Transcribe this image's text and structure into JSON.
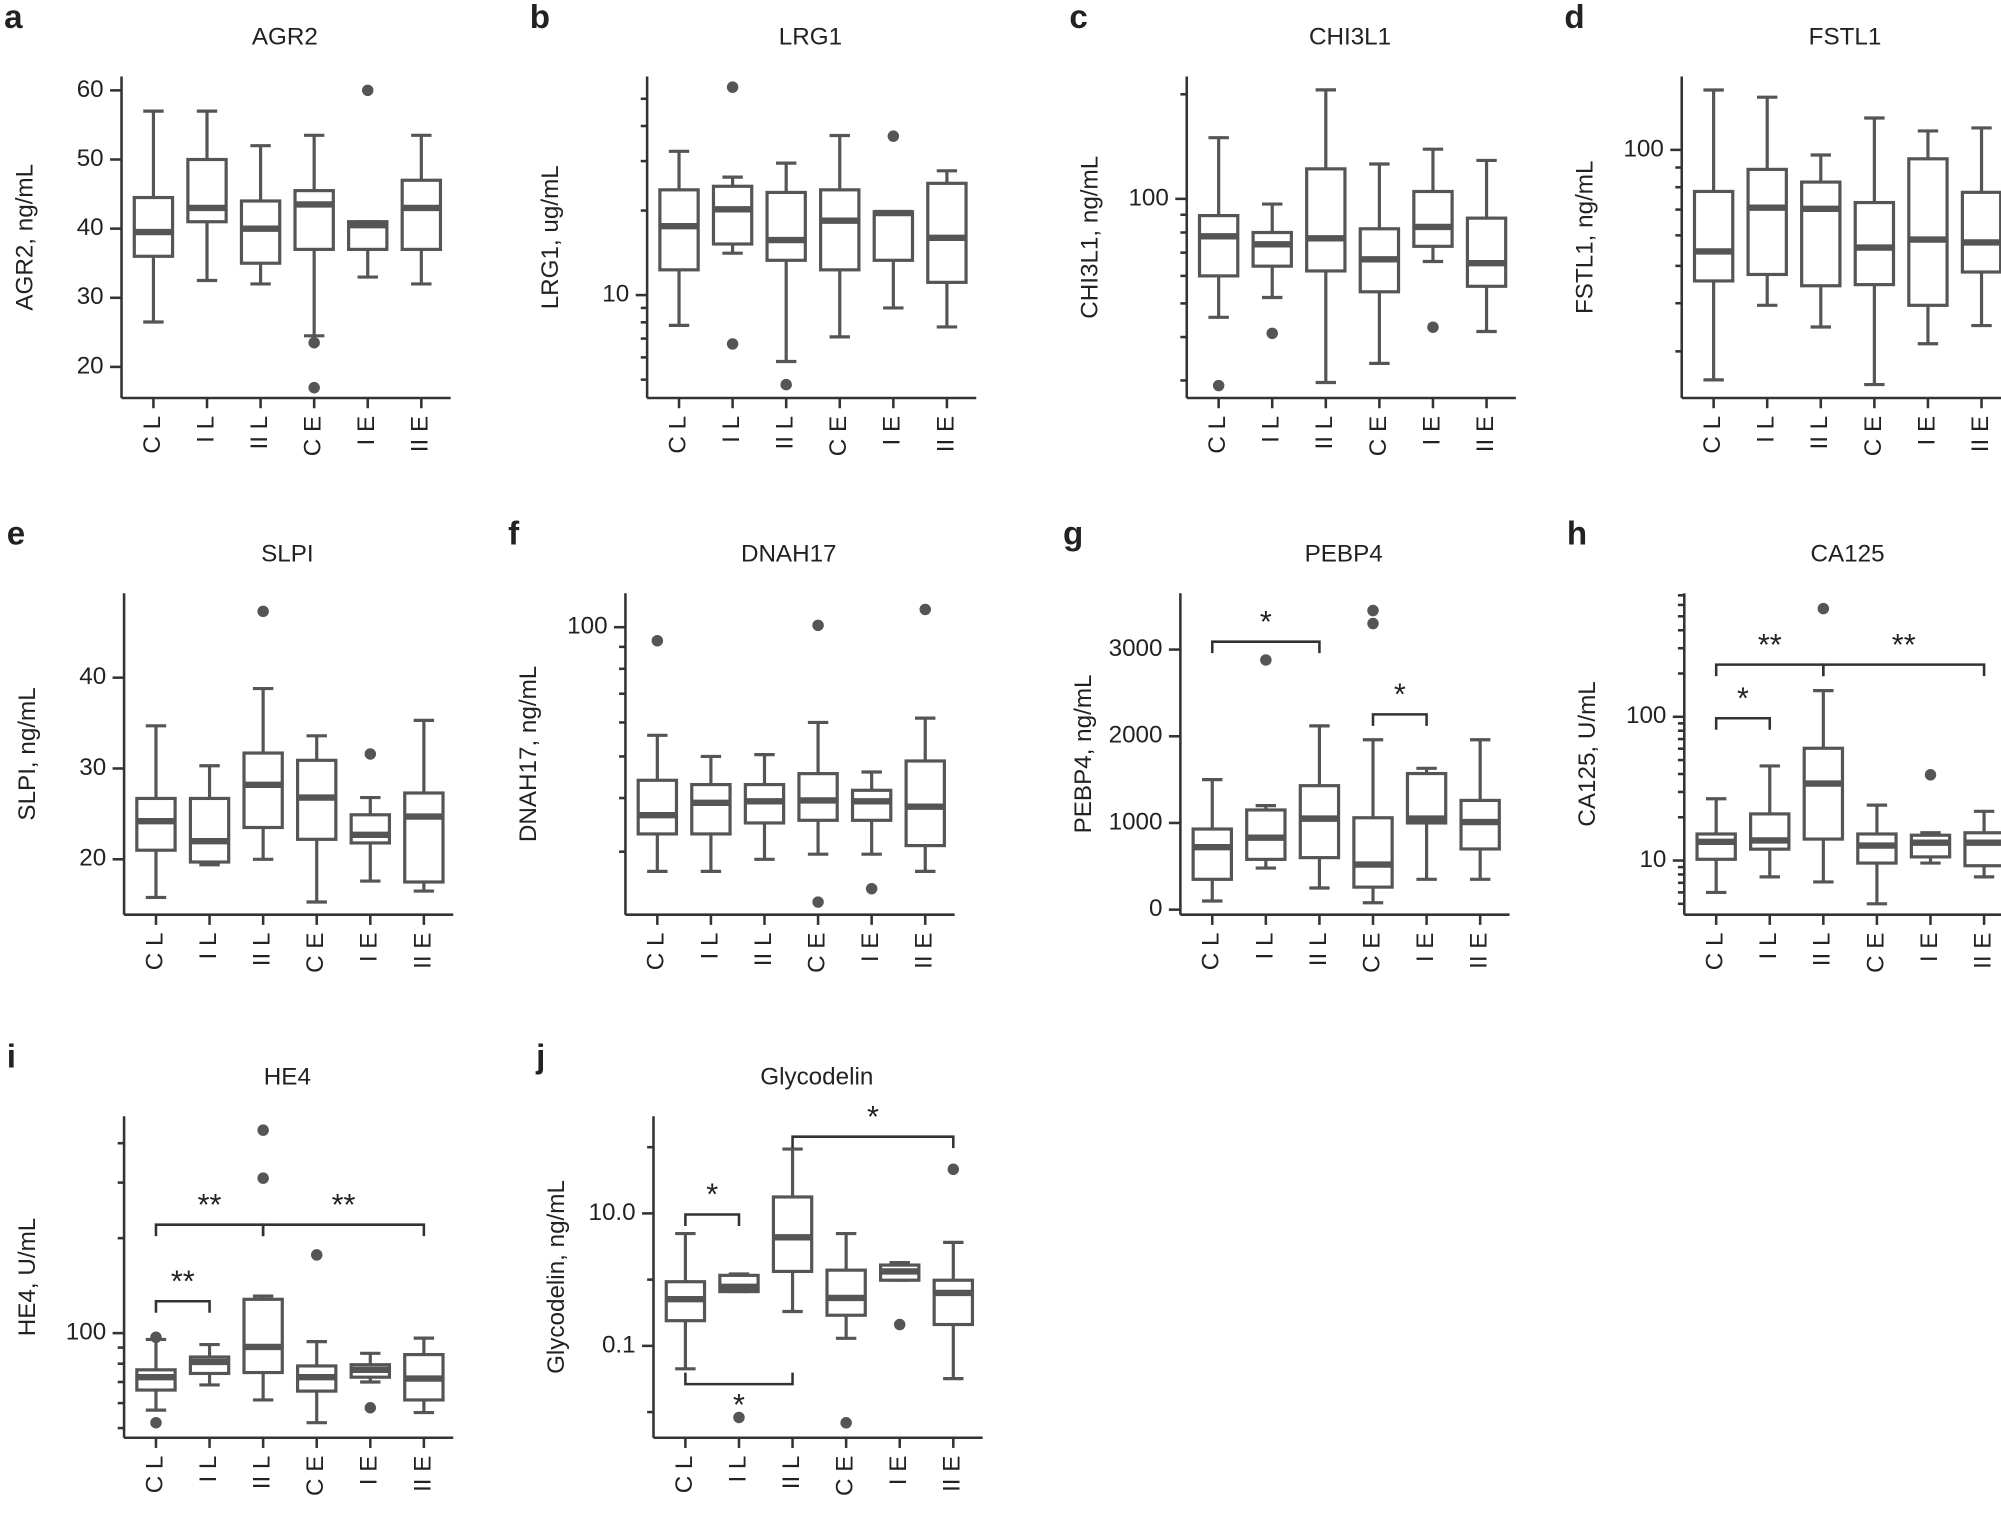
{
  "chart_data": [
    {
      "panel": "a",
      "type": "box",
      "title": "AGR2",
      "ylabel": "AGR2, ng/mL",
      "categories": [
        "C L",
        "I L",
        "II L",
        "C E",
        "I E",
        "II E"
      ],
      "log": false,
      "color": "#555555",
      "ylim": [
        15.5,
        62
      ],
      "yticks": [
        20,
        30,
        40,
        50,
        60
      ],
      "boxes": [
        {
          "min": 26.5,
          "q1": 36,
          "median": 39.5,
          "q3": 44.5,
          "max": 57
        },
        {
          "min": 32.5,
          "q1": 41,
          "median": 43,
          "q3": 50,
          "max": 57
        },
        {
          "min": 32,
          "q1": 35,
          "median": 40,
          "q3": 44,
          "max": 52
        },
        {
          "min": 24.5,
          "q1": 37,
          "median": 43.5,
          "q3": 45.5,
          "max": 53.5,
          "outliers": [
            23.5,
            17
          ]
        },
        {
          "min": 33,
          "q1": 37,
          "median": 40.5,
          "q3": 41,
          "max": 41,
          "outliers": [
            60
          ]
        },
        {
          "min": 32,
          "q1": 37,
          "median": 43,
          "q3": 47,
          "max": 53.5
        }
      ]
    },
    {
      "panel": "b",
      "type": "box",
      "title": "LRG1",
      "ylabel": "LRG1, ug/mL",
      "categories": [
        "C L",
        "I L",
        "II L",
        "C E",
        "I E",
        "II E"
      ],
      "log": true,
      "color": "#555555",
      "ylim": [
        4.3,
        60
      ],
      "yticks": [
        10
      ],
      "minor_yticks": [
        5,
        6,
        7,
        8,
        9,
        20,
        30,
        40,
        50
      ],
      "boxes": [
        {
          "min": 7.8,
          "q1": 12.3,
          "median": 17.6,
          "q3": 23.7,
          "max": 32.5
        },
        {
          "min": 14.1,
          "q1": 15.2,
          "median": 20.2,
          "q3": 24.4,
          "max": 26.3,
          "outliers": [
            55,
            6.7
          ]
        },
        {
          "min": 5.8,
          "q1": 13.3,
          "median": 15.7,
          "q3": 23.2,
          "max": 29.5,
          "outliers": [
            4.8
          ]
        },
        {
          "min": 7.1,
          "q1": 12.3,
          "median": 18.4,
          "q3": 23.7,
          "max": 37
        },
        {
          "min": 9,
          "q1": 13.3,
          "median": 19.6,
          "q3": 19.8,
          "max": 19.8,
          "outliers": [
            36.8
          ]
        },
        {
          "min": 7.7,
          "q1": 11.1,
          "median": 16,
          "q3": 25,
          "max": 27.7
        }
      ]
    },
    {
      "panel": "c",
      "type": "box",
      "title": "CHI3L1",
      "ylabel": "CHI3L1, ng/mL",
      "categories": [
        "C L",
        "I L",
        "II L",
        "C E",
        "I E",
        "II E"
      ],
      "log": true,
      "color": "#555555",
      "ylim": [
        26.7,
        225
      ],
      "yticks": [
        100
      ],
      "minor_yticks": [
        30,
        40,
        50,
        60,
        70,
        80,
        90,
        200
      ],
      "boxes": [
        {
          "min": 45.6,
          "q1": 60,
          "median": 78,
          "q3": 89.5,
          "max": 150,
          "outliers": [
            29
          ]
        },
        {
          "min": 52,
          "q1": 64,
          "median": 74,
          "q3": 80,
          "max": 96.6,
          "outliers": [
            41
          ]
        },
        {
          "min": 29.6,
          "q1": 62,
          "median": 77,
          "q3": 122,
          "max": 206
        },
        {
          "min": 33.6,
          "q1": 54,
          "median": 67,
          "q3": 82,
          "max": 126
        },
        {
          "min": 66,
          "q1": 73,
          "median": 83,
          "q3": 105,
          "max": 139,
          "outliers": [
            42.7
          ]
        },
        {
          "min": 41.5,
          "q1": 56,
          "median": 65.3,
          "q3": 88,
          "max": 129
        }
      ]
    },
    {
      "panel": "d",
      "type": "box",
      "title": "FSTL1",
      "ylabel": "FSTL1, ng/mL",
      "categories": [
        "C L",
        "I L",
        "II L",
        "C E",
        "I E",
        "II E"
      ],
      "log": true,
      "color": "#555555",
      "ylim": [
        22.7,
        155
      ],
      "yticks": [
        100
      ],
      "minor_yticks": [
        30,
        40,
        50,
        60,
        70,
        80,
        90
      ],
      "boxes": [
        {
          "min": 25.3,
          "q1": 45.7,
          "median": 54.5,
          "q3": 78,
          "max": 143
        },
        {
          "min": 39.5,
          "q1": 47.5,
          "median": 70.8,
          "q3": 89,
          "max": 137
        },
        {
          "min": 34.7,
          "q1": 44.4,
          "median": 70.3,
          "q3": 82.5,
          "max": 97
        },
        {
          "min": 24.6,
          "q1": 44.7,
          "median": 55.8,
          "q3": 73,
          "max": 121
        },
        {
          "min": 31.4,
          "q1": 39.5,
          "median": 58.5,
          "q3": 94.8,
          "max": 112
        },
        {
          "min": 35,
          "q1": 48.2,
          "median": 57.5,
          "q3": 77.6,
          "max": 114
        }
      ]
    },
    {
      "panel": "e",
      "type": "box",
      "title": "SLPI",
      "ylabel": "SLPI, ng/mL",
      "categories": [
        "C L",
        "I L",
        "II L",
        "C E",
        "I E",
        "II E"
      ],
      "log": false,
      "color": "#555555",
      "ylim": [
        13.9,
        49.3
      ],
      "yticks": [
        20,
        30,
        40
      ],
      "boxes": [
        {
          "min": 15.8,
          "q1": 21,
          "median": 24.2,
          "q3": 26.7,
          "max": 34.7
        },
        {
          "min": 19.4,
          "q1": 19.7,
          "median": 22,
          "q3": 26.7,
          "max": 30.3
        },
        {
          "min": 20,
          "q1": 23.5,
          "median": 28.2,
          "q3": 31.7,
          "max": 38.8,
          "outliers": [
            47.3
          ]
        },
        {
          "min": 15.3,
          "q1": 22.2,
          "median": 26.8,
          "q3": 30.9,
          "max": 33.6
        },
        {
          "min": 17.6,
          "q1": 21.8,
          "median": 22.7,
          "q3": 24.9,
          "max": 26.8,
          "outliers": [
            31.6
          ]
        },
        {
          "min": 16.5,
          "q1": 17.5,
          "median": 24.7,
          "q3": 27.3,
          "max": 35.3
        }
      ]
    },
    {
      "panel": "f",
      "type": "box",
      "title": "DNAH17",
      "ylabel": "DNAH17, ng/mL",
      "categories": [
        "C L",
        "I L",
        "II L",
        "C E",
        "I E",
        "II E"
      ],
      "log": true,
      "color": "#555555",
      "ylim": [
        21.4,
        120
      ],
      "yticks": [
        100
      ],
      "minor_yticks": [
        30,
        40,
        50,
        60,
        70,
        80,
        90
      ],
      "boxes": [
        {
          "min": 27,
          "q1": 33,
          "median": 36.5,
          "q3": 44,
          "max": 56,
          "outliers": [
            93
          ]
        },
        {
          "min": 27,
          "q1": 33,
          "median": 39,
          "q3": 43,
          "max": 50
        },
        {
          "min": 28.8,
          "q1": 35,
          "median": 39.3,
          "q3": 43,
          "max": 50.5
        },
        {
          "min": 29.6,
          "q1": 35.5,
          "median": 39.5,
          "q3": 45.6,
          "max": 60,
          "outliers": [
            101,
            22.9
          ]
        },
        {
          "min": 29.6,
          "q1": 35.5,
          "median": 39.3,
          "q3": 41.7,
          "max": 46,
          "outliers": [
            24.6
          ]
        },
        {
          "min": 27,
          "q1": 31,
          "median": 38.2,
          "q3": 48.8,
          "max": 61.4,
          "outliers": [
            110
          ]
        }
      ]
    },
    {
      "panel": "g",
      "type": "box",
      "title": "PEBP4",
      "ylabel": "PEBP4, ng/mL",
      "categories": [
        "C L",
        "I L",
        "II L",
        "C E",
        "I E",
        "II E"
      ],
      "log": false,
      "color": "#555555",
      "ylim": [
        -58,
        3650
      ],
      "yticks": [
        0,
        1000,
        2000,
        3000
      ],
      "boxes": [
        {
          "min": 100,
          "q1": 350,
          "median": 720,
          "q3": 930,
          "max": 1500
        },
        {
          "min": 480,
          "q1": 580,
          "median": 830,
          "q3": 1150,
          "max": 1200,
          "outliers": [
            2880
          ]
        },
        {
          "min": 250,
          "q1": 600,
          "median": 1050,
          "q3": 1430,
          "max": 2120
        },
        {
          "min": 80,
          "q1": 260,
          "median": 520,
          "q3": 1060,
          "max": 1960,
          "outliers": [
            3300,
            3450
          ]
        },
        {
          "min": 350,
          "q1": 1000,
          "median": 1050,
          "q3": 1570,
          "max": 1630
        },
        {
          "min": 350,
          "q1": 700,
          "median": 1010,
          "q3": 1260,
          "max": 1960
        }
      ],
      "annotations": [
        {
          "text": "*",
          "from": "C L",
          "to": "II L"
        },
        {
          "text": "*",
          "from": "C E",
          "to": "I E"
        }
      ]
    },
    {
      "panel": "h",
      "type": "box",
      "title": "CA125",
      "ylabel": "CA125, U/mL",
      "categories": [
        "C L",
        "I L",
        "II L",
        "C E",
        "I E",
        "II E"
      ],
      "log": true,
      "color": "#555555",
      "ylim": [
        4.2,
        724
      ],
      "yticks": [
        10,
        100
      ],
      "minor_yticks": [
        5,
        6,
        7,
        8,
        9,
        20,
        30,
        40,
        50,
        60,
        70,
        80,
        90,
        200,
        300,
        400,
        500,
        600,
        700
      ],
      "boxes": [
        {
          "min": 6,
          "q1": 10.2,
          "median": 13.5,
          "q3": 15.3,
          "max": 26.9
        },
        {
          "min": 7.7,
          "q1": 12,
          "median": 13.8,
          "q3": 21.1,
          "max": 45.5
        },
        {
          "min": 7.1,
          "q1": 14.1,
          "median": 34.3,
          "q3": 60.4,
          "max": 152,
          "outliers": [
            566
          ]
        },
        {
          "min": 5,
          "q1": 9.6,
          "median": 12.7,
          "q3": 15.3,
          "max": 24.3
        },
        {
          "min": 9.6,
          "q1": 10.6,
          "median": 13.3,
          "q3": 15,
          "max": 15.6,
          "outliers": [
            39.5
          ]
        },
        {
          "min": 7.7,
          "q1": 9.2,
          "median": 13.3,
          "q3": 15.6,
          "max": 22
        }
      ],
      "annotations": [
        {
          "text": "*",
          "from": "C L",
          "to": "I L"
        },
        {
          "text": "**",
          "from": "C L",
          "to": "II L"
        },
        {
          "text": "**",
          "from": "II L",
          "to": "II E"
        }
      ]
    },
    {
      "panel": "i",
      "type": "box",
      "title": "HE4",
      "ylabel": "HE4, U/mL",
      "categories": [
        "C L",
        "I L",
        "II L",
        "C E",
        "I E",
        "II E"
      ],
      "log": true,
      "color": "#555555",
      "ylim": [
        46.6,
        487
      ],
      "yticks": [
        100
      ],
      "minor_yticks": [
        50,
        60,
        70,
        80,
        90,
        200,
        300,
        400
      ],
      "boxes": [
        {
          "min": 57,
          "q1": 66,
          "median": 72.5,
          "q3": 76.5,
          "max": 95.5,
          "outliers": [
            97,
            52
          ]
        },
        {
          "min": 68.5,
          "q1": 74.5,
          "median": 81,
          "q3": 84,
          "max": 92
        },
        {
          "min": 61.4,
          "q1": 75,
          "median": 90.4,
          "q3": 128,
          "max": 131,
          "outliers": [
            440,
            310
          ]
        },
        {
          "min": 52,
          "q1": 65.5,
          "median": 72.5,
          "q3": 78.7,
          "max": 94,
          "outliers": [
            177
          ]
        },
        {
          "min": 70,
          "q1": 72.5,
          "median": 76.5,
          "q3": 79.4,
          "max": 86.3,
          "outliers": [
            58
          ]
        },
        {
          "min": 56,
          "q1": 61.4,
          "median": 71.8,
          "q3": 85.5,
          "max": 96.4
        }
      ],
      "annotations": [
        {
          "text": "**",
          "from": "C L",
          "to": "I L"
        },
        {
          "text": "**",
          "from": "C L",
          "to": "II L"
        },
        {
          "text": "**",
          "from": "II L",
          "to": "II E"
        }
      ]
    },
    {
      "panel": "j",
      "type": "box",
      "title": "Glycodelin",
      "ylabel": "Glycodelin, ng/mL",
      "categories": [
        "C L",
        "I L",
        "II L",
        "C E",
        "I E",
        "II E"
      ],
      "log": true,
      "color": "#555555",
      "ylim": [
        0.0041,
        293
      ],
      "yticks": [
        {
          "value": 0.1,
          "label": "0.1"
        },
        {
          "value": 10,
          "label": "10.0"
        }
      ],
      "minor_yticks": [
        0.01,
        1,
        100
      ],
      "boxes": [
        {
          "min": 0.045,
          "q1": 0.24,
          "median": 0.507,
          "q3": 0.93,
          "max": 4.96
        },
        {
          "min": 0.66,
          "q1": 0.66,
          "median": 0.78,
          "q3": 1.16,
          "max": 1.22,
          "outliers": [
            0.0083
          ]
        },
        {
          "min": 0.33,
          "q1": 1.33,
          "median": 4.35,
          "q3": 17.7,
          "max": 93.7
        },
        {
          "min": 0.13,
          "q1": 0.29,
          "median": 0.53,
          "q3": 1.39,
          "max": 4.96,
          "outliers": [
            0.0069
          ]
        },
        {
          "min": 0.98,
          "q1": 0.98,
          "median": 1.33,
          "q3": 1.66,
          "max": 1.81,
          "outliers": [
            0.21
          ]
        },
        {
          "min": 0.032,
          "q1": 0.21,
          "median": 0.63,
          "q3": 0.98,
          "max": 3.65,
          "outliers": [
            46.4
          ]
        }
      ],
      "annotations": [
        {
          "text": "*",
          "from": "C L",
          "to": "I L"
        },
        {
          "text": "*",
          "from": "II L",
          "to": "II E"
        },
        {
          "text": "*",
          "from": "C L",
          "to": "II L",
          "position": "below"
        }
      ]
    }
  ]
}
